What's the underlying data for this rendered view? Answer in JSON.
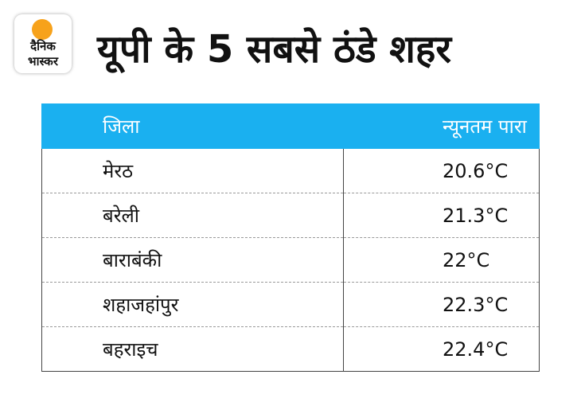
{
  "header": {
    "logo": [
      "दैनिक",
      "भास्कर"
    ],
    "title": "यूपी के 5 सबसे ठंडे शहर"
  },
  "table": {
    "columns": [
      "जिला",
      "न्यूनतम पारा"
    ],
    "rows": [
      [
        "मेरठ",
        "20.6°C"
      ],
      [
        "बरेली",
        "21.3°C"
      ],
      [
        "बाराबंकी",
        "22°C"
      ],
      [
        "शहाजहांपुर",
        "22.3°C"
      ],
      [
        "बहराइच",
        "22.4°C"
      ]
    ]
  }
}
